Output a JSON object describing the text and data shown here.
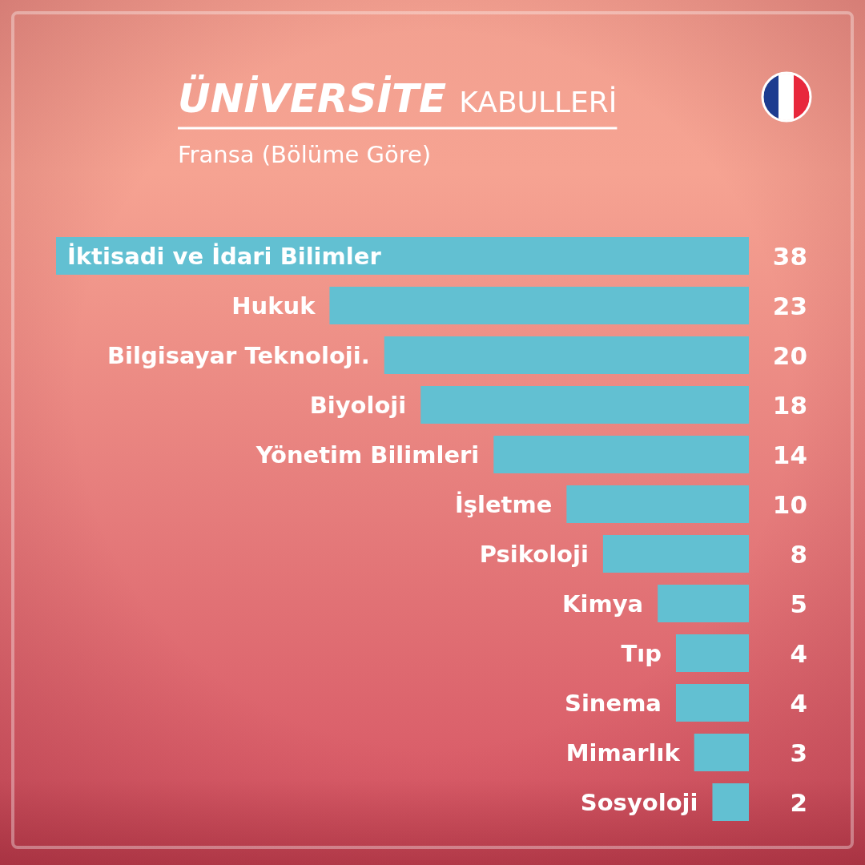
{
  "chart_data": {
    "type": "bar",
    "orientation": "horizontal",
    "title": "ÜNİVERSİTE KABULLERİ",
    "subtitle": "Fransa (Bölüme Göre)",
    "categories": [
      "İktisadi ve İdari Bilimler",
      "Hukuk",
      "Bilgisayar Teknoloji.",
      "Biyoloji",
      "Yönetim Bilimleri",
      "İşletme",
      "Psikoloji",
      "Kimya",
      "Tıp",
      "Sinema",
      "Mimarlık",
      "Sosyoloji"
    ],
    "values": [
      38,
      23,
      20,
      18,
      14,
      10,
      8,
      5,
      4,
      4,
      3,
      2
    ],
    "color": "#62c0d2",
    "xlim": [
      38,
      0
    ],
    "data_labels": true,
    "tick_labels": "y"
  }
}
